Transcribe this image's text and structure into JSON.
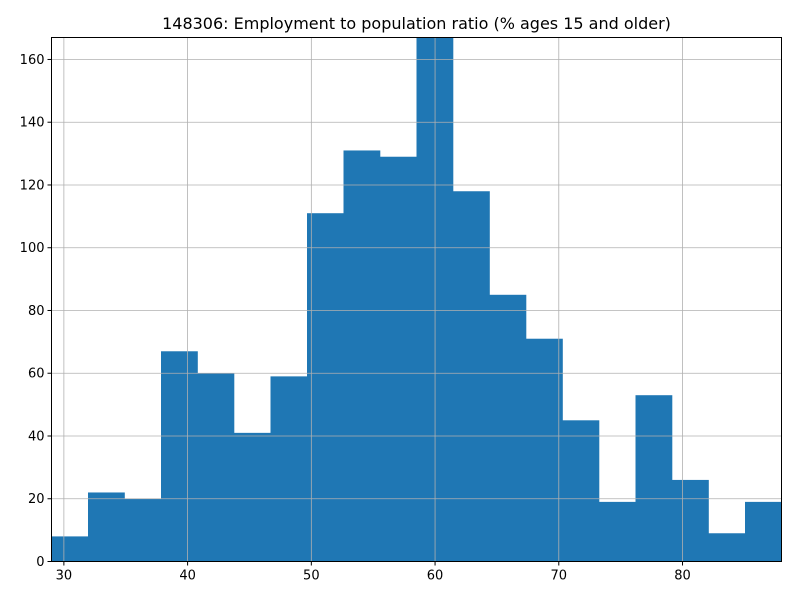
{
  "chart_data": {
    "type": "bar",
    "subtype": "histogram",
    "title": "148306: Employment to population ratio (% ages 15 and older)",
    "xlabel": "",
    "ylabel": "",
    "xlim": [
      29.0,
      88.0
    ],
    "ylim": [
      0,
      167
    ],
    "grid": true,
    "color": "#1f77b4",
    "bin_edges": [
      29.0,
      31.95,
      34.9,
      37.85,
      40.8,
      43.75,
      46.7,
      49.65,
      52.6,
      55.55,
      58.5,
      61.45,
      64.4,
      67.35,
      70.3,
      73.25,
      76.2,
      79.15,
      82.1,
      85.05,
      88.0
    ],
    "values": [
      8,
      22,
      20,
      67,
      60,
      41,
      59,
      111,
      131,
      129,
      167,
      118,
      85,
      71,
      45,
      19,
      53,
      26,
      9,
      19
    ],
    "x_ticks": [
      30,
      40,
      50,
      60,
      70,
      80
    ],
    "x_tick_labels": [
      "30",
      "40",
      "50",
      "60",
      "70",
      "80"
    ],
    "y_ticks": [
      0,
      20,
      40,
      60,
      80,
      100,
      120,
      140,
      160
    ],
    "y_tick_labels": [
      "0",
      "20",
      "40",
      "60",
      "80",
      "100",
      "120",
      "140",
      "160"
    ]
  }
}
